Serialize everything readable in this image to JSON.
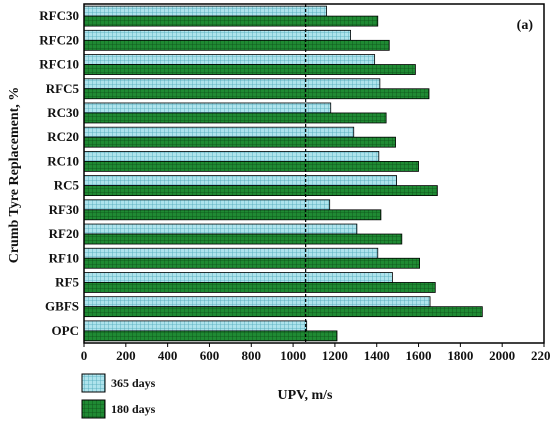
{
  "chart_data": {
    "type": "bar",
    "orientation": "horizontal",
    "panel_label": "(a)",
    "xlabel": "UPV, m/s",
    "ylabel": "Crumb Tyre Replacement, %",
    "xlim": [
      0,
      2200
    ],
    "xticks": [
      0,
      200,
      400,
      600,
      800,
      1000,
      1200,
      1400,
      1600,
      1800,
      2000,
      2200
    ],
    "reference_line": 1060,
    "categories": [
      "RFC30",
      "RFC20",
      "RFC10",
      "RFC5",
      "RC30",
      "RC20",
      "RC10",
      "RC5",
      "RF30",
      "RF20",
      "RF10",
      "RF5",
      "GBFS",
      "OPC"
    ],
    "series": [
      {
        "name": "365 days",
        "color": "#aee3ec",
        "pattern": "grid",
        "values": [
          1160,
          1275,
          1390,
          1415,
          1180,
          1290,
          1410,
          1495,
          1175,
          1305,
          1405,
          1475,
          1655,
          1065
        ]
      },
      {
        "name": "180 days",
        "color": "#1e7a2c",
        "pattern": "grid",
        "values": [
          1405,
          1460,
          1585,
          1650,
          1445,
          1490,
          1600,
          1690,
          1420,
          1520,
          1605,
          1680,
          1905,
          1210
        ]
      }
    ],
    "legend_position": "bottom-left",
    "grid": false
  }
}
